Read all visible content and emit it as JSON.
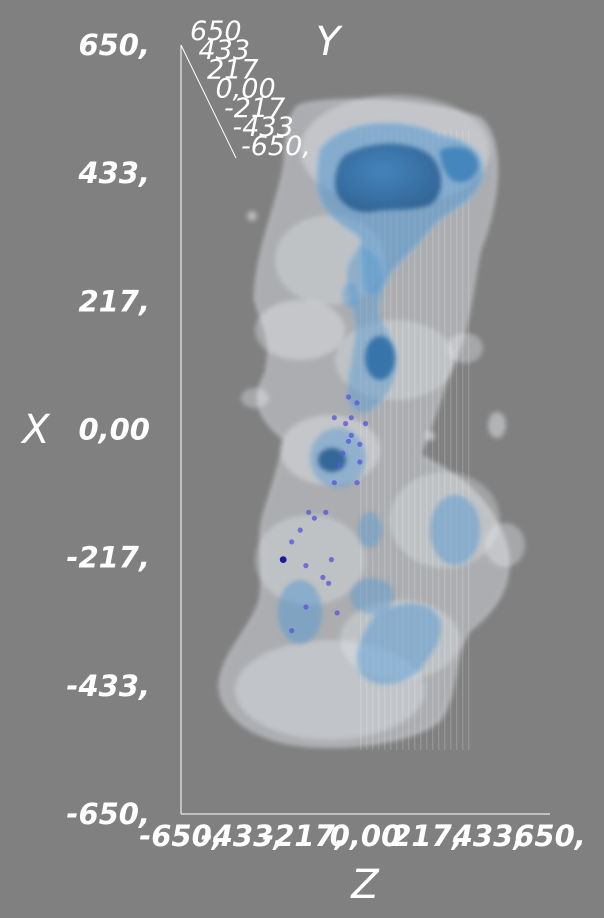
{
  "chart_data": {
    "type": "scatter",
    "title": "",
    "axes": {
      "x": {
        "label": "X",
        "ticks": [
          "650,",
          "433,",
          "217,",
          "0,00",
          "-217,",
          "-433,",
          "-650,"
        ],
        "range": [
          -650,
          650
        ]
      },
      "y": {
        "label": "Y",
        "ticks": [
          "650",
          "433",
          "217",
          "0,00",
          "-217",
          "-433",
          "-650,"
        ],
        "range": [
          -650,
          650
        ]
      },
      "z": {
        "label": "Z",
        "ticks": [
          "-650,",
          "-433,",
          "-217,",
          "0,00",
          "217,",
          "433,",
          "650,"
        ],
        "range": [
          -650,
          650
        ]
      }
    },
    "points": [
      {
        "z": -290,
        "x": -220,
        "emphasis": true
      },
      {
        "z": -260,
        "x": -190
      },
      {
        "z": -230,
        "x": -170
      },
      {
        "z": -210,
        "x": -230
      },
      {
        "z": -210,
        "x": -300
      },
      {
        "z": -200,
        "x": -140
      },
      {
        "z": -180,
        "x": -150
      },
      {
        "z": -140,
        "x": -140
      },
      {
        "z": -130,
        "x": -260
      },
      {
        "z": -110,
        "x": -90
      },
      {
        "z": -100,
        "x": -310
      },
      {
        "z": -90,
        "x": -60
      },
      {
        "z": -60,
        "x": -20
      },
      {
        "z": -70,
        "x": 10
      },
      {
        "z": -80,
        "x": -40
      },
      {
        "z": -30,
        "x": -90
      },
      {
        "z": -20,
        "x": -55
      },
      {
        "z": -50,
        "x": 20
      },
      {
        "z": -110,
        "x": 20
      },
      {
        "z": -30,
        "x": 45
      },
      {
        "z": -20,
        "x": -25
      },
      {
        "z": 0,
        "x": 10
      },
      {
        "z": -60,
        "x": 55
      },
      {
        "z": -50,
        "x": -10
      },
      {
        "z": -260,
        "x": -340
      },
      {
        "z": -150,
        "x": -250
      },
      {
        "z": -120,
        "x": -220
      }
    ],
    "grid": false,
    "legend": "none"
  },
  "colors": {
    "background": "#808080",
    "isosurface_outer": "#e6eaf0",
    "isosurface_inner": "#4a8ec4",
    "core": "#2e6fa8",
    "point": "#5a5ad8",
    "point_emphasis": "#1a1aa0",
    "label": "#ffffff"
  }
}
